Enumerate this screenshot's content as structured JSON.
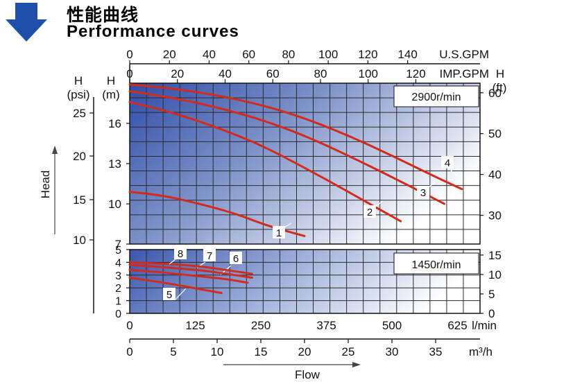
{
  "header": {
    "title_cn": "性能曲线",
    "title_en": "Performance curves",
    "accent_color": "#1f4fa8"
  },
  "chart_data": {
    "type": "line",
    "title": "Performance curves",
    "xlabel": "Flow",
    "ylabel": "Head",
    "top_axes": [
      {
        "unit": "U.S.GPM",
        "ticks": [
          "0",
          "20",
          "40",
          "60",
          "80",
          "100",
          "120",
          "140"
        ]
      },
      {
        "unit": "IMP.GPM",
        "ticks": [
          "0",
          "20",
          "40",
          "60",
          "80",
          "100",
          "120"
        ]
      }
    ],
    "bottom_axes": [
      {
        "unit": "l/min",
        "ticks": [
          "0",
          "125",
          "250",
          "375",
          "500",
          "625"
        ]
      },
      {
        "unit": "m³/h",
        "ticks": [
          "0",
          "5",
          "10",
          "15",
          "20",
          "25",
          "30",
          "35"
        ]
      }
    ],
    "left_axes": {
      "psi_label": "H\n(psi)",
      "m_label": "H\n(m)",
      "psi_ticks": [
        "25",
        "20",
        "15",
        "10"
      ],
      "m_ticks_upper": [
        "16",
        "13",
        "10",
        "7"
      ],
      "m_ticks_lower": [
        "5",
        "4",
        "3",
        "2",
        "1",
        "0"
      ]
    },
    "right_axes": {
      "ft_label": "H\n(ft)",
      "ft_ticks_upper": [
        "60",
        "50",
        "40",
        "30"
      ],
      "ft_ticks_lower": [
        "15",
        "10",
        "5",
        "0"
      ]
    },
    "upper_panel": {
      "speed_label": "2900r/min",
      "ylim": [
        7,
        19
      ],
      "series": [
        {
          "name": "1",
          "flow_m3h": [
            0,
            4,
            8,
            12,
            16,
            20
          ],
          "head_m": [
            10.9,
            10.6,
            10.0,
            9.3,
            8.3,
            7.6
          ]
        },
        {
          "name": "2",
          "flow_m3h": [
            0,
            5,
            10,
            15,
            20,
            25,
            31
          ],
          "head_m": [
            17.6,
            16.8,
            15.7,
            14.4,
            12.7,
            10.9,
            8.7
          ]
        },
        {
          "name": "3",
          "flow_m3h": [
            0,
            5,
            10,
            15,
            20,
            25,
            30,
            36
          ],
          "head_m": [
            18.4,
            17.9,
            17.2,
            16.3,
            15.1,
            13.6,
            12.0,
            10.0
          ]
        },
        {
          "name": "4",
          "flow_m3h": [
            0,
            5,
            10,
            15,
            20,
            25,
            30,
            35,
            38
          ],
          "head_m": [
            18.9,
            18.6,
            18.1,
            17.4,
            16.4,
            15.1,
            13.6,
            12.0,
            11.1
          ]
        }
      ]
    },
    "lower_panel": {
      "speed_label": "1450r/min",
      "ylim": [
        0,
        5
      ],
      "series": [
        {
          "name": "5",
          "flow_m3h": [
            0,
            4,
            8,
            10.5
          ],
          "head_m": [
            2.8,
            2.4,
            1.9,
            1.6
          ]
        },
        {
          "name": "6",
          "flow_m3h": [
            0,
            4,
            8,
            11,
            13.5
          ],
          "head_m": [
            3.4,
            3.2,
            2.9,
            2.7,
            2.4
          ]
        },
        {
          "name": "7",
          "flow_m3h": [
            0,
            4,
            8,
            11,
            14
          ],
          "head_m": [
            3.8,
            3.6,
            3.4,
            3.1,
            2.8
          ]
        },
        {
          "name": "8",
          "flow_m3h": [
            0,
            4,
            8,
            11,
            14
          ],
          "head_m": [
            4.0,
            3.9,
            3.7,
            3.4,
            3.1
          ]
        }
      ]
    },
    "curve_color": "#d42a1c"
  }
}
